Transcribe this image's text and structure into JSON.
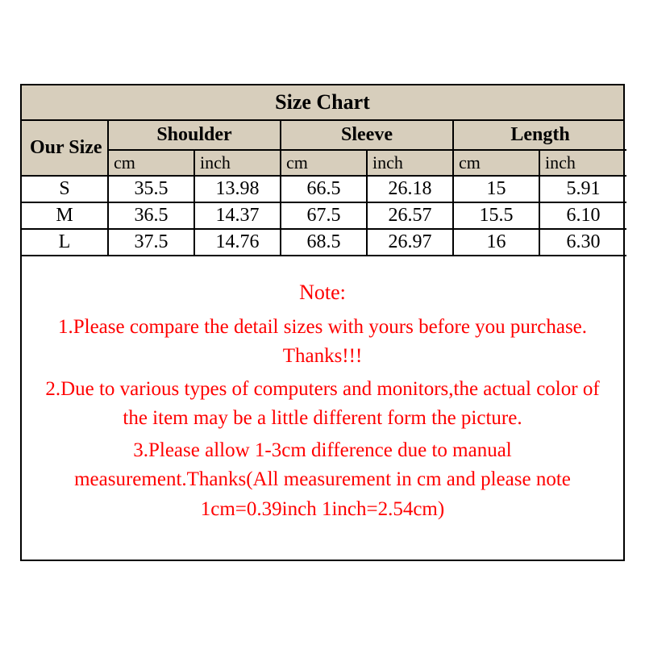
{
  "title": "Size Chart",
  "headers": {
    "our_size": "Our Size",
    "groups": [
      "Shoulder",
      "Sleeve",
      "Length"
    ],
    "units": [
      "cm",
      "inch",
      "cm",
      "inch",
      "cm",
      "inch"
    ]
  },
  "rows": [
    {
      "size": "S",
      "cells": [
        "35.5",
        "13.98",
        "66.5",
        "26.18",
        "15",
        "5.91"
      ]
    },
    {
      "size": "M",
      "cells": [
        "36.5",
        "14.37",
        "67.5",
        "26.57",
        "15.5",
        "6.10"
      ]
    },
    {
      "size": "L",
      "cells": [
        "37.5",
        "14.76",
        "68.5",
        "26.97",
        "16",
        "6.30"
      ]
    }
  ],
  "note": {
    "title": "Note:",
    "lines": [
      "1.Please compare the detail sizes with yours before you purchase. Thanks!!!",
      "2.Due to various types of computers and monitors,the actual color of the item may be a little different form the picture.",
      "3.Please allow 1-3cm difference due to manual measurement.Thanks(All measurement in cm and please note 1cm=0.39inch 1inch=2.54cm)"
    ]
  },
  "colors": {
    "header_bg": "#d7cebc",
    "border": "#000000",
    "note_text": "#ff0000",
    "background": "#ffffff"
  },
  "typography": {
    "title_fontsize": 26,
    "header_fontsize": 24,
    "unit_fontsize": 22,
    "cell_fontsize": 24,
    "note_fontsize": 25,
    "font_family": "Times New Roman"
  }
}
